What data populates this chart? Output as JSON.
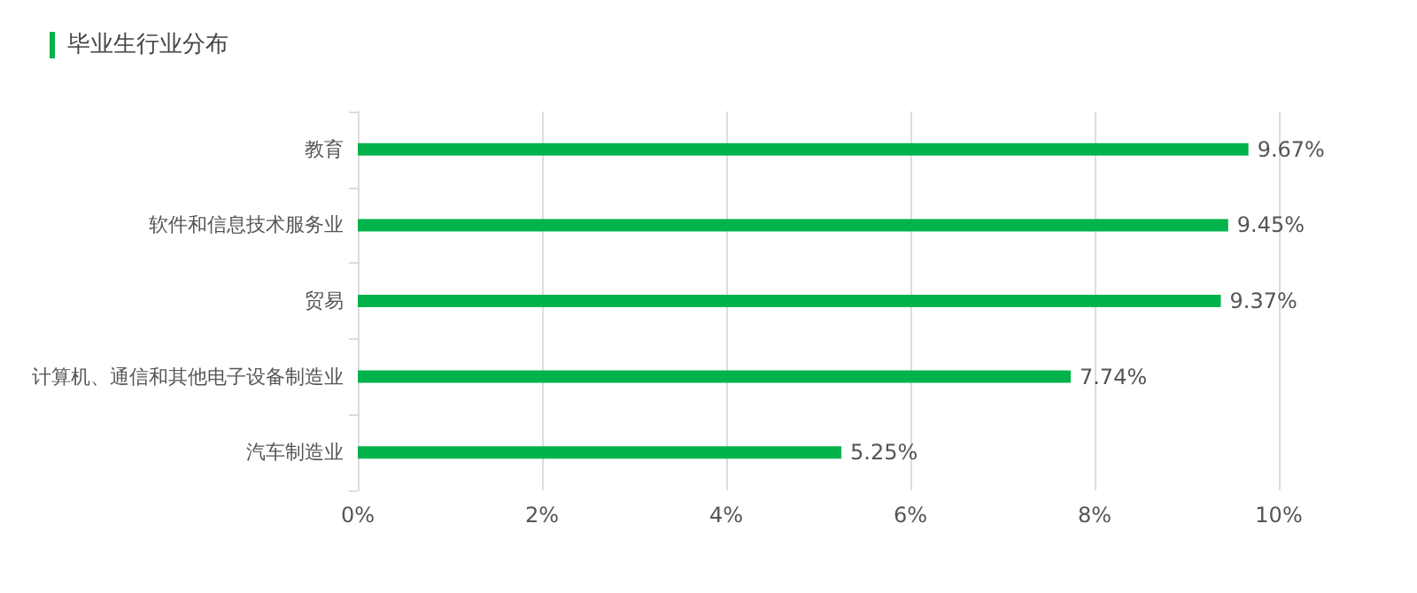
{
  "chart_data": {
    "type": "bar",
    "orientation": "horizontal",
    "title": "毕业生行业分布",
    "categories": [
      "教育",
      "软件和信息技术服务业",
      "贸易",
      "计算机、通信和其他电子设备制造业",
      "汽车制造业"
    ],
    "values": [
      9.67,
      9.45,
      9.37,
      7.74,
      5.25
    ],
    "value_labels": [
      "9.67%",
      "9.45%",
      "9.37%",
      "7.74%",
      "5.25%"
    ],
    "color": "#00b34a",
    "xlim": [
      0,
      10
    ],
    "xticks": [
      {
        "value": 0,
        "label": "0%"
      },
      {
        "value": 2,
        "label": "2%"
      },
      {
        "value": 4,
        "label": "4%"
      },
      {
        "value": 6,
        "label": "6%"
      },
      {
        "value": 8,
        "label": "8%"
      },
      {
        "value": 10,
        "label": "10%"
      }
    ],
    "grid": "x"
  }
}
